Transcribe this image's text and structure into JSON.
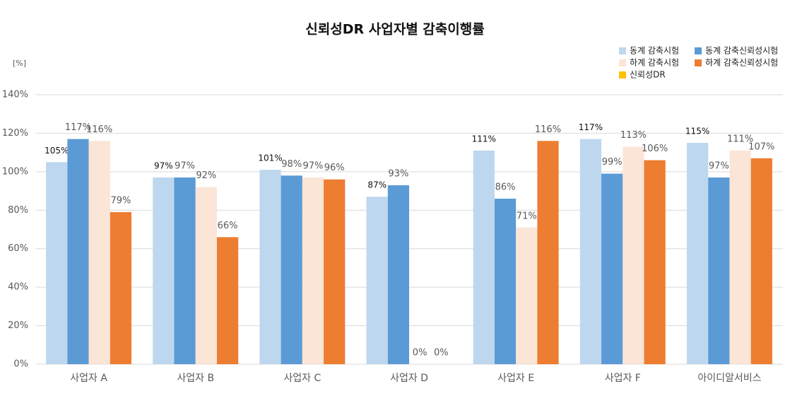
{
  "chart_data": {
    "type": "bar",
    "title": "신뢰성DR 사업자별 감축이행률",
    "y_label": "[%]",
    "categories": [
      "사업자 A",
      "사업자 B",
      "사업자 C",
      "사업자 D",
      "사업자 E",
      "사업자 F",
      "아이디알서비스"
    ],
    "series": [
      {
        "name": "동계 감축시험",
        "color": "#bdd7ee",
        "values": [
          105,
          97,
          101,
          87,
          111,
          117,
          115
        ],
        "value_labels": [
          "105%",
          "97%",
          "101%",
          "87%",
          "111%",
          "117%",
          "115%"
        ]
      },
      {
        "name": "동계 감축신뢰성시험",
        "color": "#5b9bd5",
        "values": [
          117,
          97,
          98,
          93,
          86,
          99,
          97
        ],
        "value_labels": [
          "117%",
          "97%",
          "98%",
          "93%",
          "86%",
          "99%",
          "97%"
        ]
      },
      {
        "name": "하계 감축시험",
        "color": "#fbe5d6",
        "values": [
          116,
          92,
          97,
          0,
          71,
          113,
          111
        ],
        "value_labels": [
          "116%",
          "92%",
          "97%",
          "0%",
          "71%",
          "113%",
          "111%"
        ]
      },
      {
        "name": "하계 감축신뢰성시험",
        "color": "#ed7d31",
        "values": [
          79,
          66,
          96,
          0,
          116,
          106,
          107
        ],
        "value_labels": [
          "79%",
          "66%",
          "96%",
          "0%",
          "116%",
          "106%",
          "107%"
        ]
      },
      {
        "name": "신뢰성DR",
        "color": "#ffc000",
        "values": [
          null,
          null,
          null,
          null,
          null,
          null,
          null
        ]
      }
    ],
    "ylim": [
      0,
      140
    ],
    "yticks": [
      {
        "value": 0,
        "label": "0%"
      },
      {
        "value": 20,
        "label": "20%"
      },
      {
        "value": 40,
        "label": "40%"
      },
      {
        "value": 60,
        "label": "60%"
      },
      {
        "value": 80,
        "label": "80%"
      },
      {
        "value": 100,
        "label": "100%"
      },
      {
        "value": 120,
        "label": "120%"
      },
      {
        "value": 140,
        "label": "140%"
      }
    ],
    "grid": true
  }
}
